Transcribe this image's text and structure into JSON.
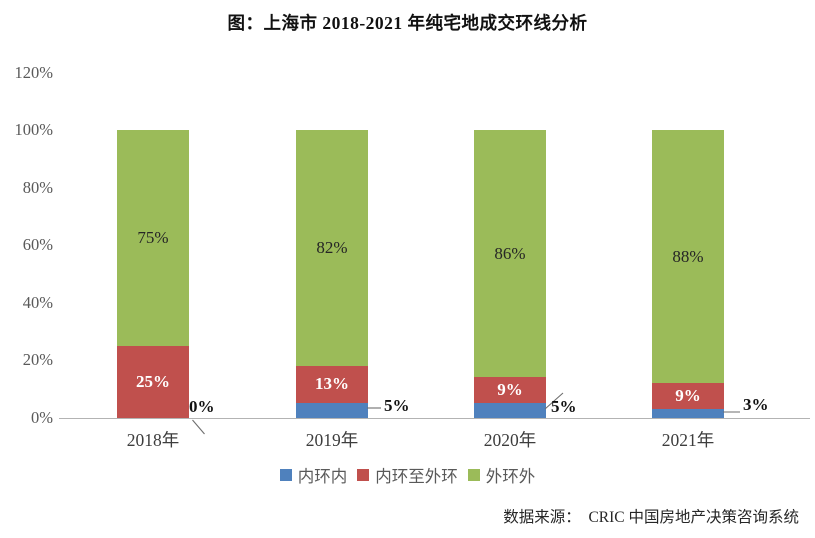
{
  "title": "图：上海市 2018-2021 年纯宅地成交环线分析",
  "source": "数据来源：  CRIC 中国房地产决策咨询系统",
  "chart_data": {
    "type": "bar",
    "stacked": true,
    "title": "图：上海市 2018-2021 年纯宅地成交环线分析",
    "categories": [
      "2018年",
      "2019年",
      "2020年",
      "2021年"
    ],
    "series": [
      {
        "key": "inner-ring",
        "name": "内环内",
        "color": "#4F81BD",
        "values": [
          0,
          5,
          5,
          3
        ],
        "labels": [
          "0%",
          "5%",
          "5%",
          "3%"
        ],
        "label_style": "callout-outside"
      },
      {
        "key": "inner-outer-ring",
        "name": "内环至外环",
        "color": "#C0504D",
        "values": [
          25,
          13,
          9,
          9
        ],
        "labels": [
          "25%",
          "13%",
          "9%",
          "9%"
        ],
        "label_style": "inside-white-bold"
      },
      {
        "key": "outer-ring",
        "name": "外环外",
        "color": "#9BBB59",
        "values": [
          75,
          82,
          86,
          88
        ],
        "labels": [
          "75%",
          "82%",
          "86%",
          "88%"
        ],
        "label_style": "inside-black"
      }
    ],
    "ylim": [
      0,
      120
    ],
    "yticks": [
      "0%",
      "20%",
      "40%",
      "60%",
      "80%",
      "100%",
      "120%"
    ],
    "ytick_values": [
      0,
      20,
      40,
      60,
      80,
      100,
      120
    ],
    "grid": false,
    "legend_position": "bottom",
    "axis_color": "#B3B3B3",
    "leader_line_color": "#6e6e6e"
  }
}
